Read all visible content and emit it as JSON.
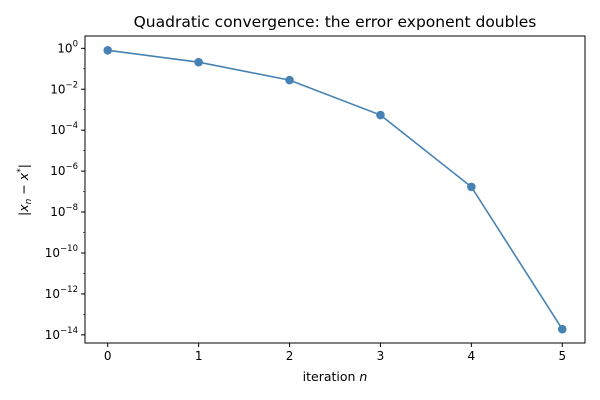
{
  "chart_data": {
    "type": "line",
    "title": "Quadratic convergence: the error exponent doubles",
    "xlabel": "iteration n",
    "ylabel": "|x_n − x*|",
    "xlim": [
      -0.25,
      5.25
    ],
    "ylim": [
      4e-15,
      4
    ],
    "yscale": "log",
    "grid": false,
    "x": [
      0,
      1,
      2,
      3,
      4,
      5
    ],
    "xticks": [
      0,
      1,
      2,
      3,
      4,
      5
    ],
    "ytick_exponents": [
      0,
      -2,
      -4,
      -6,
      -8,
      -10,
      -12,
      -14
    ],
    "series": [
      {
        "name": "",
        "values": [
          0.8,
          0.21,
          0.028,
          0.00055,
          1.7e-07,
          1.9e-14
        ],
        "color": "#4682b4",
        "marker": "circle"
      }
    ]
  }
}
